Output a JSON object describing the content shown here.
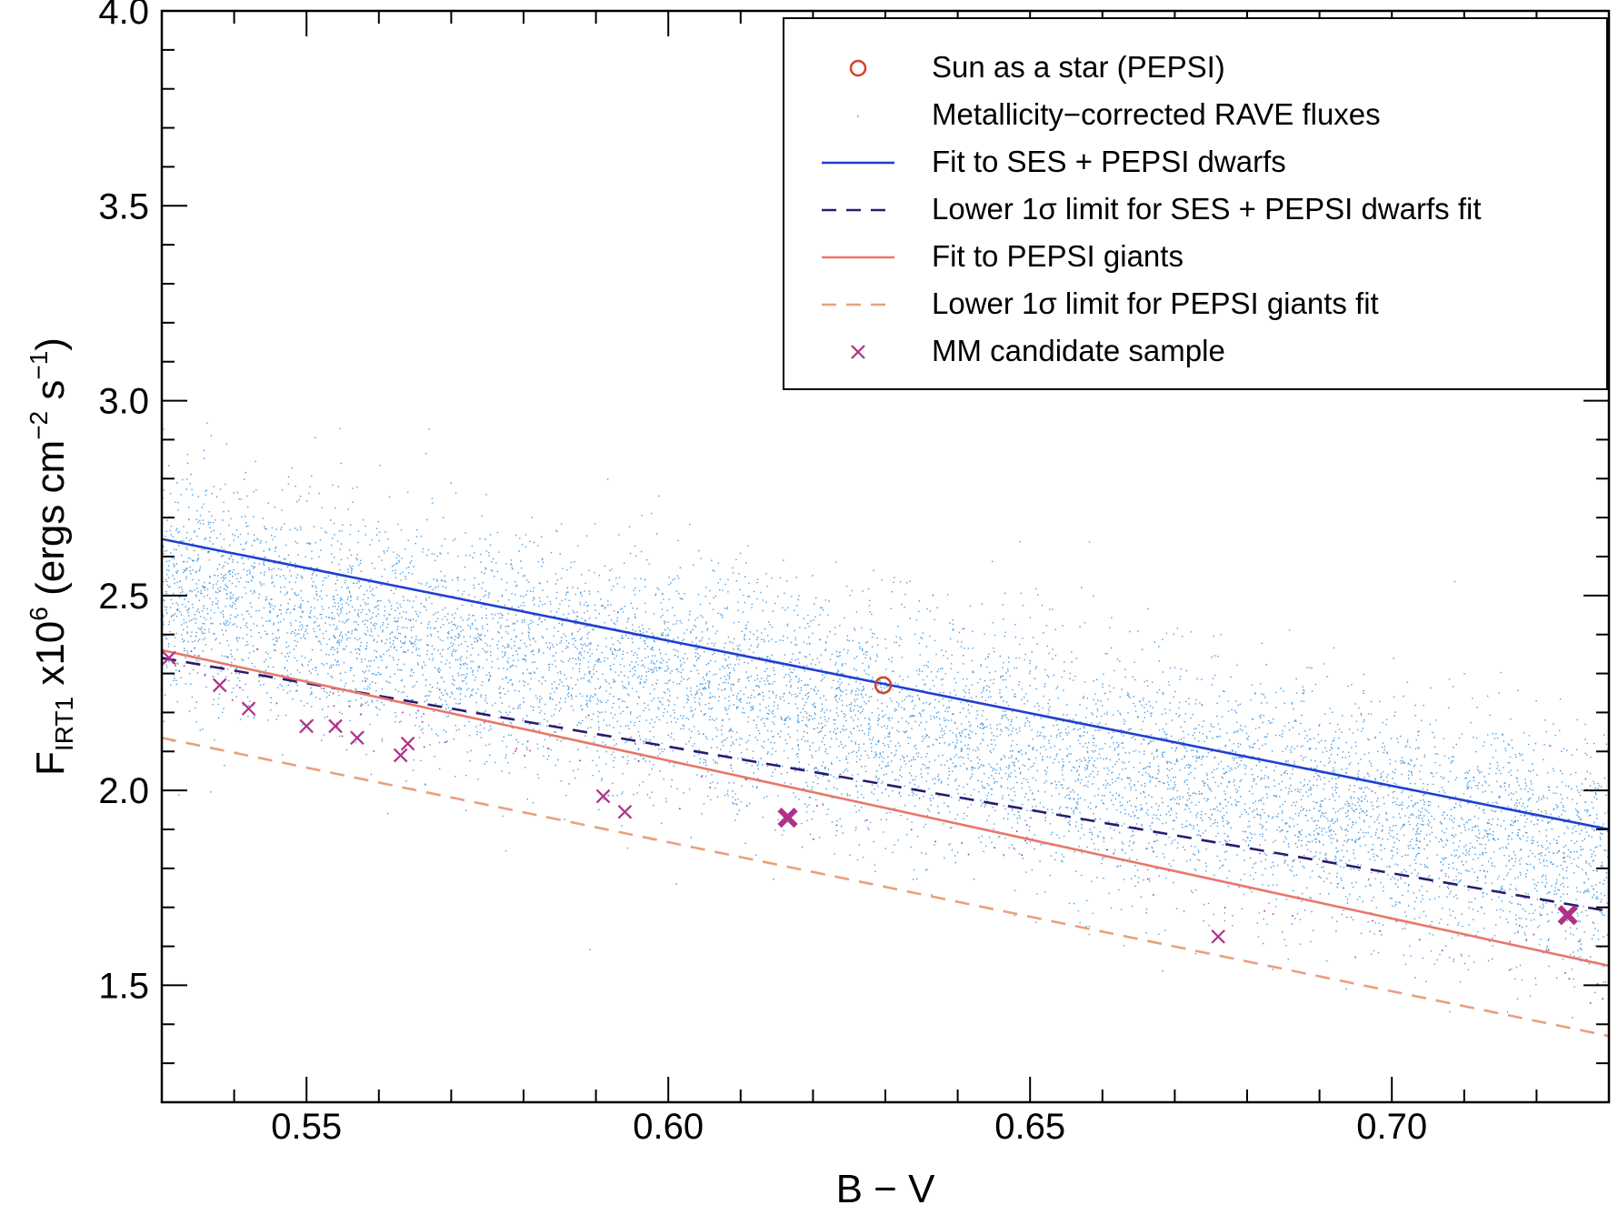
{
  "chart_data": {
    "type": "scatter",
    "title": "",
    "xlabel": "B − V",
    "ylabel": {
      "main": "F",
      "sub": "IRT1",
      "mult": " x10",
      "exp": "6",
      "units_open": " (ergs cm",
      "units_exp1": "−2",
      "units_mid": " s",
      "units_exp2": "−1",
      "units_close": ")"
    },
    "xlim": [
      0.53,
      0.73
    ],
    "ylim": [
      1.2,
      4.0
    ],
    "xticks": [
      0.55,
      0.6,
      0.65,
      0.7
    ],
    "xtick_labels": [
      "0.55",
      "0.60",
      "0.65",
      "0.70"
    ],
    "yticks": [
      1.5,
      2.0,
      2.5,
      3.0,
      3.5,
      4.0
    ],
    "ytick_labels": [
      "1.5",
      "2.0",
      "2.5",
      "3.0",
      "3.5",
      "4.0"
    ],
    "grid": false,
    "legend_position": "top-right",
    "colors": {
      "sun": "#d6402a",
      "rave": "#4a9be0",
      "dwarf_fit": "#1f3fd0",
      "dwarf_lower": "#2a1a6e",
      "giant_fit": "#e8776a",
      "giant_lower": "#e8a07e",
      "mm": "#b0308a"
    },
    "series": [
      {
        "key": "sun",
        "name": "Sun as a star (PEPSI)",
        "style": "circle",
        "points": [
          [
            0.6297,
            2.27
          ]
        ]
      },
      {
        "key": "rave",
        "name": "Metallicity−corrected RAVE fluxes",
        "style": "dots",
        "cloud": {
          "count": 9000,
          "x_range": [
            0.53,
            0.73
          ],
          "center_intercept": 2.52,
          "center_slope": -3.5,
          "spread": 0.15,
          "center_x0": 0.53
        }
      },
      {
        "key": "dwarf_fit",
        "name": "Fit to SES + PEPSI dwarfs",
        "style": "solid",
        "x": [
          0.53,
          0.73
        ],
        "y": [
          2.645,
          1.9
        ]
      },
      {
        "key": "dwarf_lower",
        "name": "Lower 1σ limit for SES + PEPSI dwarfs fit",
        "style": "dashed",
        "x": [
          0.53,
          0.73
        ],
        "y": [
          2.34,
          1.69
        ]
      },
      {
        "key": "giant_fit",
        "name": "Fit to PEPSI giants",
        "style": "solid",
        "x": [
          0.53,
          0.73
        ],
        "y": [
          2.36,
          1.55
        ]
      },
      {
        "key": "giant_lower",
        "name": "Lower 1σ limit for PEPSI giants fit",
        "style": "dashed",
        "x": [
          0.53,
          0.73
        ],
        "y": [
          2.135,
          1.37
        ]
      },
      {
        "key": "mm",
        "name": "MM candidate sample",
        "style": "cross",
        "points": [
          [
            0.531,
            2.34
          ],
          [
            0.538,
            2.27
          ],
          [
            0.542,
            2.21
          ],
          [
            0.55,
            2.165
          ],
          [
            0.554,
            2.165
          ],
          [
            0.557,
            2.135
          ],
          [
            0.563,
            2.09
          ],
          [
            0.564,
            2.12
          ],
          [
            0.591,
            1.985
          ],
          [
            0.594,
            1.945
          ],
          [
            0.676,
            1.625
          ]
        ],
        "big_points": [
          [
            0.6165,
            1.93
          ],
          [
            0.7243,
            1.68
          ]
        ]
      }
    ]
  }
}
